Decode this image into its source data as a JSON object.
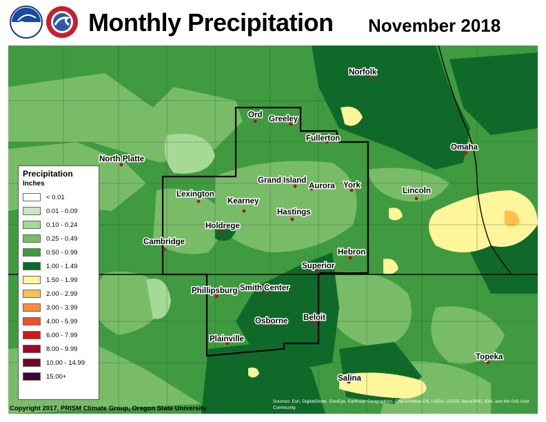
{
  "header": {
    "title": "Monthly Precipitation",
    "date": "November 2018"
  },
  "logos": [
    {
      "name": "noaa-logo-icon"
    },
    {
      "name": "nws-logo-icon"
    }
  ],
  "legend": {
    "title": "Precipitation",
    "units": "Inches",
    "items": [
      {
        "label": "< 0.01",
        "color": "#ffffff"
      },
      {
        "label": "0.01 - 0.09",
        "color": "#c8e8c0"
      },
      {
        "label": "0.10 - 0.24",
        "color": "#a6d896"
      },
      {
        "label": "0.25 - 0.49",
        "color": "#78bc68"
      },
      {
        "label": "0.50 - 0.99",
        "color": "#3f9a40"
      },
      {
        "label": "1.00 - 1.49",
        "color": "#0f6a2a"
      },
      {
        "label": "1.50 - 1.99",
        "color": "#fff59a"
      },
      {
        "label": "2.00 - 2.99",
        "color": "#ffc04a"
      },
      {
        "label": "3.00 - 3.99",
        "color": "#ff8c3a"
      },
      {
        "label": "4.00 - 5.99",
        "color": "#f0502a"
      },
      {
        "label": "6.00 - 7.99",
        "color": "#d01a1a"
      },
      {
        "label": "8.00 - 9.99",
        "color": "#a00a2a"
      },
      {
        "label": "10.00 - 14.99",
        "color": "#6a0a2a"
      },
      {
        "label": "15.00+",
        "color": "#3a0838"
      }
    ]
  },
  "cities": [
    {
      "name": "Norfolk"
    },
    {
      "name": "Ord"
    },
    {
      "name": "Greeley"
    },
    {
      "name": "Fullerton"
    },
    {
      "name": "North Platte"
    },
    {
      "name": "Omaha"
    },
    {
      "name": "Grand Island"
    },
    {
      "name": "Aurora"
    },
    {
      "name": "York"
    },
    {
      "name": "Lincoln"
    },
    {
      "name": "Lexington"
    },
    {
      "name": "Kearney"
    },
    {
      "name": "Hastings"
    },
    {
      "name": "Holdrege"
    },
    {
      "name": "Cambridge"
    },
    {
      "name": "Hebron"
    },
    {
      "name": "Superior"
    },
    {
      "name": "Phillipsburg"
    },
    {
      "name": "Smith Center"
    },
    {
      "name": "Osborne"
    },
    {
      "name": "Beloit"
    },
    {
      "name": "Plainville"
    },
    {
      "name": "Topeka"
    },
    {
      "name": "Salina"
    }
  ],
  "footer": {
    "copyright": "Copyright 2017, PRISM Climate Group, Oregon State University",
    "sources": "Sources: Esri, DigitalGlobe, GeoEye, Earthstar Geographics, CNES/Airbus DS, USDA, USGS, AeroGRID, IGN, and the GIS User Community"
  }
}
